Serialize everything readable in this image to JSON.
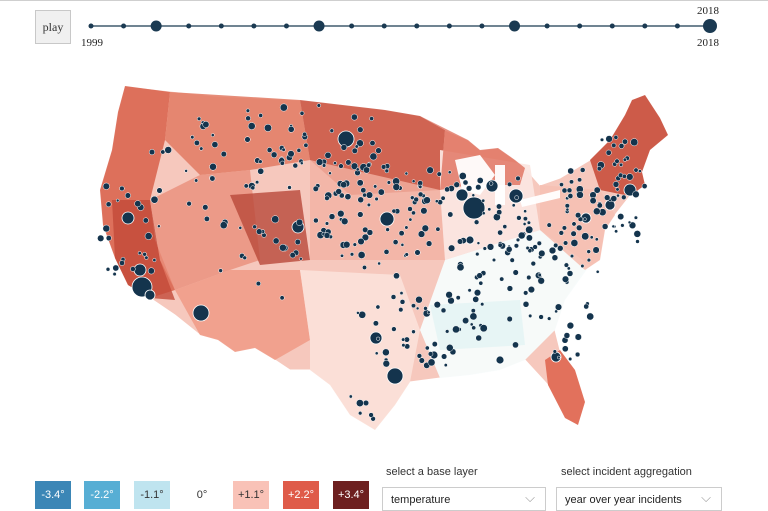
{
  "controls": {
    "play_label": "play"
  },
  "timeline": {
    "start_year": "1999",
    "end_year": "2018",
    "current_year": "2018",
    "current_label": "2018",
    "big_marker_indices": [
      2,
      7,
      13,
      19
    ],
    "current_index": 19,
    "tick_count": 20,
    "line_color": "#1b3a52"
  },
  "legend": {
    "items": [
      {
        "label": "-3.4°",
        "bg": "#3b86b6",
        "fg": "#ffffff"
      },
      {
        "label": "-2.2°",
        "bg": "#57aed4",
        "fg": "#ffffff"
      },
      {
        "label": "-1.1°",
        "bg": "#bfe4ef",
        "fg": "#333333"
      },
      {
        "label": "0°",
        "bg": "#ffffff",
        "fg": "#333333"
      },
      {
        "label": "+1.1°",
        "bg": "#f9c2b7",
        "fg": "#333333"
      },
      {
        "label": "+2.2°",
        "bg": "#df5b49",
        "fg": "#ffffff"
      },
      {
        "label": "+3.4°",
        "bg": "#6d1f1f",
        "fg": "#ffffff"
      }
    ]
  },
  "selectors": {
    "base_layer_label": "select a base layer",
    "base_layer_value": "temperature",
    "aggregation_label": "select incident aggregation",
    "aggregation_value": "year over year incidents"
  },
  "map": {
    "marker_color": "#14344d",
    "state_colors": {
      "west": "#c95a42",
      "mountain": "#e07a64",
      "plains": "#f0a08e",
      "midwest": "#f6c4b7",
      "south": "#fbe3dc",
      "southeast": "#fff4f1",
      "northeast": "#d26550",
      "florida": "#e27a63"
    }
  }
}
